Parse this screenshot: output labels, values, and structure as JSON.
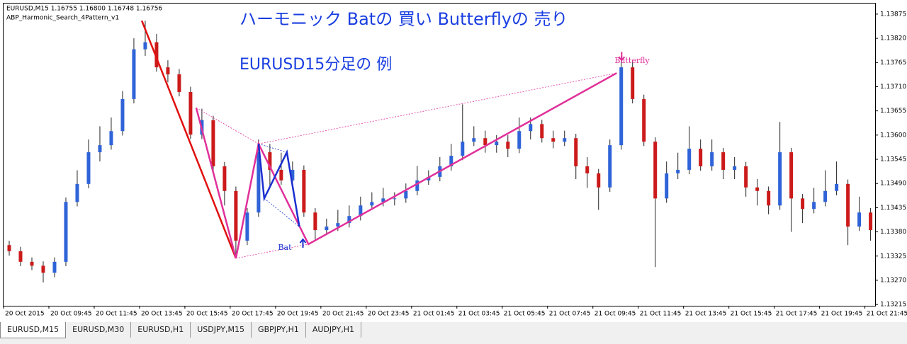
{
  "chart_data": {
    "type": "candlestick",
    "header": [
      "EURUSD,M15  1.16755 1.16800 1.16748 1.16756",
      "ABP_Harmonic_Search_4Pattern_v1"
    ],
    "title": "ハーモニック Batの 買い Butterflyの 売り",
    "subtitle": "EURUSD15分足の 例",
    "up_color": "#2f63d8",
    "down_color": "#cc1a1a",
    "grid": false,
    "open": [
      1.1335,
      1.13336,
      1.13312,
      1.13303,
      1.13287,
      1.13312,
      1.13448,
      1.13489,
      1.13561,
      1.13577,
      1.13609,
      1.13682,
      1.13795,
      1.13811,
      1.13754,
      1.13738,
      1.13698,
      1.13601,
      1.13634,
      1.13529,
      1.13473,
      1.1336,
      1.13424,
      1.13561,
      1.13521,
      1.13497,
      1.13521,
      1.13424,
      1.13384,
      1.13392,
      1.134,
      1.13416,
      1.1344,
      1.13448,
      1.13456,
      1.13456,
      1.13473,
      1.13497,
      1.13505,
      1.13529,
      1.13553,
      1.13585,
      1.13593,
      1.13577,
      1.13585,
      1.13569,
      1.13609,
      1.13625,
      1.13593,
      1.13585,
      1.13593,
      1.13529,
      1.13513,
      1.13481,
      1.13577,
      1.13754,
      1.13682,
      1.13585,
      1.13456,
      1.13513,
      1.13521,
      1.13569,
      1.13529,
      1.13561,
      1.13521,
      1.13529,
      1.13481,
      1.13473,
      1.1344,
      1.13561,
      1.13456,
      1.13432,
      1.13448,
      1.13473,
      1.13489,
      1.13392,
      1.13424
    ],
    "high": [
      1.1336,
      1.13346,
      1.13322,
      1.13313,
      1.13322,
      1.13458,
      1.1352,
      1.1359,
      1.1362,
      1.1364,
      1.137,
      1.1382,
      1.1386,
      1.1383,
      1.1377,
      1.1375,
      1.1371,
      1.1366,
      1.13644,
      1.13539,
      1.13483,
      1.13434,
      1.1359,
      1.1358,
      1.1356,
      1.1354,
      1.13531,
      1.13434,
      1.1341,
      1.1343,
      1.1344,
      1.1346,
      1.1347,
      1.1348,
      1.1347,
      1.1349,
      1.1353,
      1.1352,
      1.1355,
      1.1358,
      1.1367,
      1.1362,
      1.1361,
      1.136,
      1.136,
      1.1364,
      1.1364,
      1.13635,
      1.1361,
      1.1361,
      1.13603,
      1.1355,
      1.13523,
      1.1359,
      1.1378,
      1.1377,
      1.13692,
      1.13595,
      1.1354,
      1.1356,
      1.1362,
      1.1359,
      1.1359,
      1.13571,
      1.1355,
      1.13539,
      1.135,
      1.13483,
      1.1363,
      1.13571,
      1.13466,
      1.1348,
      1.1352,
      1.1354,
      1.13499,
      1.1346,
      1.13434
    ],
    "low": [
      1.13326,
      1.13302,
      1.13293,
      1.13265,
      1.13277,
      1.13302,
      1.13438,
      1.13479,
      1.1354,
      1.13567,
      1.13599,
      1.13672,
      1.1378,
      1.13744,
      1.1372,
      1.13688,
      1.13591,
      1.13591,
      1.13519,
      1.1344,
      1.1332,
      1.1335,
      1.13414,
      1.1348,
      1.13487,
      1.13487,
      1.13414,
      1.1336,
      1.13374,
      1.13382,
      1.1339,
      1.13406,
      1.1343,
      1.13438,
      1.1344,
      1.13446,
      1.13463,
      1.13487,
      1.13495,
      1.13519,
      1.13543,
      1.13575,
      1.1356,
      1.1356,
      1.1355,
      1.13559,
      1.1359,
      1.13583,
      1.1357,
      1.13575,
      1.135,
      1.1348,
      1.1343,
      1.13471,
      1.13567,
      1.13672,
      1.13575,
      1.133,
      1.13446,
      1.135,
      1.13511,
      1.13519,
      1.13519,
      1.135,
      1.135,
      1.1346,
      1.1344,
      1.1342,
      1.1343,
      1.1338,
      1.134,
      1.13422,
      1.13438,
      1.13463,
      1.1335,
      1.13382,
      1.1336
    ],
    "close": [
      1.13336,
      1.13312,
      1.13303,
      1.13287,
      1.13312,
      1.13448,
      1.13489,
      1.13561,
      1.13577,
      1.13609,
      1.13682,
      1.13795,
      1.13811,
      1.13754,
      1.13738,
      1.13698,
      1.13601,
      1.13634,
      1.13529,
      1.13473,
      1.1336,
      1.13424,
      1.13561,
      1.13521,
      1.13497,
      1.13521,
      1.13424,
      1.13384,
      1.13392,
      1.134,
      1.13416,
      1.1344,
      1.13448,
      1.13456,
      1.13456,
      1.13473,
      1.13497,
      1.13505,
      1.13529,
      1.13553,
      1.13585,
      1.13593,
      1.13577,
      1.13585,
      1.13569,
      1.13609,
      1.13625,
      1.13593,
      1.13585,
      1.13593,
      1.13529,
      1.13513,
      1.13481,
      1.13577,
      1.13754,
      1.13682,
      1.13585,
      1.13456,
      1.13513,
      1.13521,
      1.13569,
      1.13529,
      1.13561,
      1.13521,
      1.13529,
      1.13481,
      1.13473,
      1.1344,
      1.13561,
      1.13456,
      1.13432,
      1.13448,
      1.13473,
      1.13489,
      1.13392,
      1.13424,
      1.13384
    ],
    "xlim": [
      -0.5,
      76.4
    ],
    "xticks": [
      {
        "value": -0.5,
        "label": "20 Oct 2015"
      },
      {
        "value": 3.5,
        "label": "20 Oct 09:45"
      },
      {
        "value": 7.5,
        "label": "20 Oct 11:45"
      },
      {
        "value": 11.5,
        "label": "20 Oct 13:45"
      },
      {
        "value": 15.5,
        "label": "20 Oct 15:45"
      },
      {
        "value": 19.5,
        "label": "20 Oct 17:45"
      },
      {
        "value": 23.5,
        "label": "20 Oct 19:45"
      },
      {
        "value": 27.5,
        "label": "20 Oct 21:45"
      },
      {
        "value": 31.5,
        "label": "20 Oct 23:45"
      },
      {
        "value": 35.5,
        "label": "21 Oct 01:45"
      },
      {
        "value": 39.5,
        "label": "21 Oct 03:45"
      },
      {
        "value": 43.5,
        "label": "21 Oct 05:45"
      },
      {
        "value": 47.5,
        "label": "21 Oct 07:45"
      },
      {
        "value": 51.5,
        "label": "21 Oct 09:45"
      },
      {
        "value": 55.5,
        "label": "21 Oct 11:45"
      },
      {
        "value": 59.5,
        "label": "21 Oct 13:45"
      },
      {
        "value": 63.5,
        "label": "21 Oct 15:45"
      },
      {
        "value": 67.5,
        "label": "21 Oct 17:45"
      },
      {
        "value": 71.5,
        "label": "21 Oct 19:45"
      },
      {
        "value": 75.5,
        "label": "21 Oct 21:45"
      }
    ],
    "ylim": [
      1.13212,
      1.13899
    ],
    "yticks": [
      1.13875,
      {
        "value": 1.1382,
        "label": "1.13820"
      },
      1.13765,
      {
        "value": 1.1371,
        "label": "1.13710"
      },
      1.13655,
      {
        "value": 1.136,
        "label": "1.13600"
      },
      1.13545,
      {
        "value": 1.1349,
        "label": "1.13490"
      },
      1.13435,
      {
        "value": 1.1338,
        "label": "1.13380"
      },
      1.13325,
      {
        "value": 1.1327,
        "label": "1.13270"
      },
      1.13215
    ],
    "patterns": [
      {
        "color": "#e01010",
        "x": [
          11.7,
          20
        ],
        "y": [
          1.1386,
          1.1332
        ]
      },
      {
        "name": "Butterfly",
        "color": "#e0309a",
        "x": [
          16.5,
          20,
          22,
          26.4,
          53.6
        ],
        "y": [
          1.13662,
          1.1332,
          1.1358,
          1.13352,
          1.13741
        ]
      },
      {
        "name": "Bat",
        "color": "#1a2fd0",
        "x": [
          22,
          22.5,
          24.5,
          25.6
        ],
        "y": [
          1.1358,
          1.13456,
          1.13561,
          1.13392
        ]
      }
    ]
  },
  "tabs": [
    "EURUSD,M15",
    "EURUSD,M30",
    "EURUSD,H1",
    "USDJPY,M15",
    "GBPJPY,H1",
    "AUDJPY,H1"
  ]
}
